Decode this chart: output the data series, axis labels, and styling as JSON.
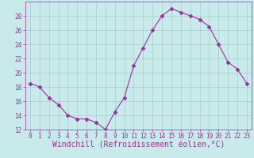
{
  "x": [
    0,
    1,
    2,
    3,
    4,
    5,
    6,
    7,
    8,
    9,
    10,
    11,
    12,
    13,
    14,
    15,
    16,
    17,
    18,
    19,
    20,
    21,
    22,
    23
  ],
  "y": [
    18.5,
    18.0,
    16.5,
    15.5,
    14.0,
    13.5,
    13.5,
    13.0,
    12.0,
    14.5,
    16.5,
    21.0,
    23.5,
    26.0,
    28.0,
    29.0,
    28.5,
    28.0,
    27.5,
    26.5,
    24.0,
    21.5,
    20.5,
    18.5
  ],
  "line_color": "#993399",
  "marker": "D",
  "marker_size": 2.5,
  "bg_color": "#c8eaea",
  "grid_color": "#a8cccc",
  "xlabel": "Windchill (Refroidissement éolien,°C)",
  "xlabel_color": "#993399",
  "tick_color": "#993399",
  "label_color": "#993399",
  "ylim": [
    12,
    30
  ],
  "xlim": [
    -0.5,
    23.5
  ],
  "yticks": [
    12,
    14,
    16,
    18,
    20,
    22,
    24,
    26,
    28
  ],
  "xticks": [
    0,
    1,
    2,
    3,
    4,
    5,
    6,
    7,
    8,
    9,
    10,
    11,
    12,
    13,
    14,
    15,
    16,
    17,
    18,
    19,
    20,
    21,
    22,
    23
  ],
  "tick_fontsize": 5.5,
  "xlabel_fontsize": 7.0
}
